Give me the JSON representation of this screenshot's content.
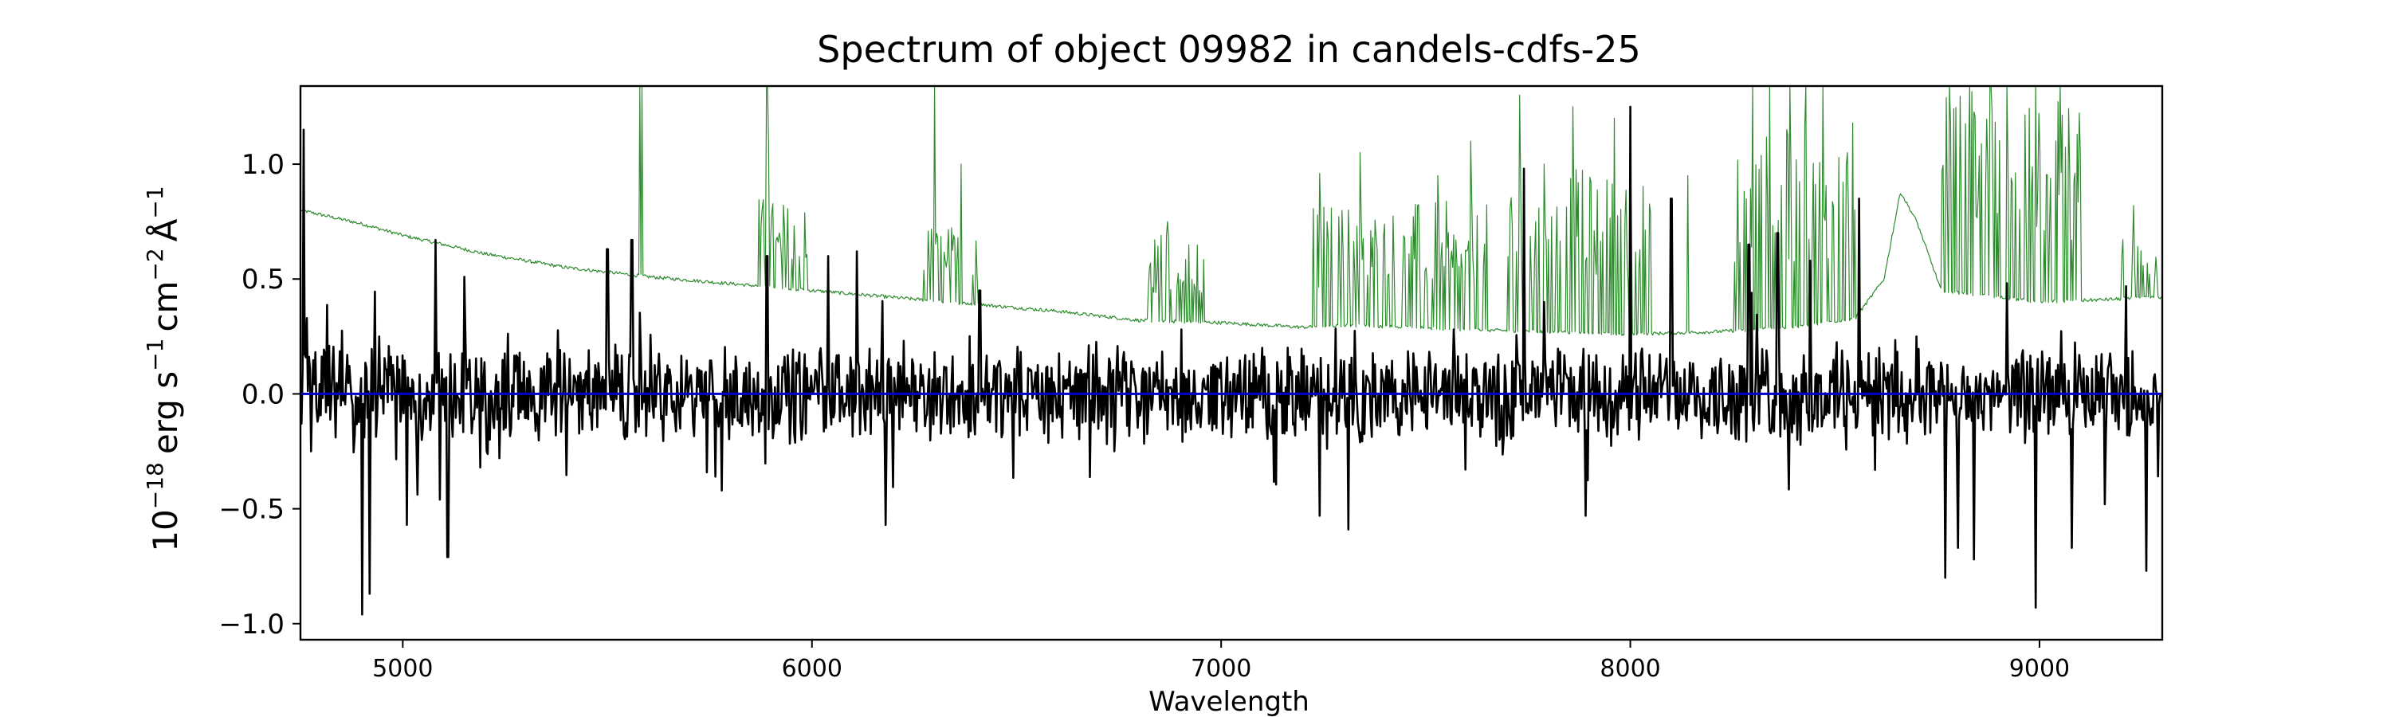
{
  "chart_data": {
    "type": "line",
    "title": "Spectrum of object 09982 in candels-cdfs-25",
    "xlabel": "Wavelength",
    "ylabel": {
      "base": "10",
      "base_exp": "−18",
      "unit_erg": "erg s",
      "s_exp": "−1",
      "unit_cm": "cm",
      "cm_exp": "−2",
      "unit_ang": "Å",
      "ang_exp": "−1"
    },
    "xlim": [
      4750,
      9300
    ],
    "ylim": [
      -1.07,
      1.34
    ],
    "x_ticks": [
      {
        "value": 5000,
        "label": "5000"
      },
      {
        "value": 6000,
        "label": "6000"
      },
      {
        "value": 7000,
        "label": "7000"
      },
      {
        "value": 8000,
        "label": "8000"
      },
      {
        "value": 9000,
        "label": "9000"
      }
    ],
    "y_ticks": [
      {
        "value": 1.0,
        "label": "1.0"
      },
      {
        "value": 0.5,
        "label": "0.5"
      },
      {
        "value": 0.0,
        "label": "0.0"
      },
      {
        "value": -0.5,
        "label": "−0.5"
      },
      {
        "value": -1.0,
        "label": "−1.0"
      }
    ],
    "grid": false,
    "legend": "none",
    "series": [
      {
        "id": "error",
        "color": "#2e8b2e",
        "linewidth": 1.2,
        "anchors": [
          [
            4750,
            0.8
          ],
          [
            4800,
            0.78
          ],
          [
            4900,
            0.74
          ],
          [
            5000,
            0.69
          ],
          [
            5100,
            0.65
          ],
          [
            5200,
            0.61
          ],
          [
            5400,
            0.55
          ],
          [
            5600,
            0.51
          ],
          [
            5800,
            0.48
          ],
          [
            6000,
            0.45
          ],
          [
            6200,
            0.42
          ],
          [
            6400,
            0.39
          ],
          [
            6600,
            0.36
          ],
          [
            6800,
            0.32
          ],
          [
            7000,
            0.31
          ],
          [
            7200,
            0.29
          ],
          [
            7300,
            0.3
          ],
          [
            7600,
            0.28
          ],
          [
            7800,
            0.27
          ],
          [
            8000,
            0.26
          ],
          [
            8200,
            0.27
          ],
          [
            8400,
            0.29
          ],
          [
            8550,
            0.33
          ],
          [
            8620,
            0.5
          ],
          [
            8660,
            0.88
          ],
          [
            8700,
            0.75
          ],
          [
            8760,
            0.45
          ],
          [
            9000,
            0.4
          ],
          [
            9300,
            0.42
          ]
        ],
        "spikes": [
          [
            5580,
            1.34
          ],
          [
            5585,
            1.34
          ],
          [
            5890,
            1.34
          ],
          [
            5895,
            1.1
          ],
          [
            6300,
            1.34
          ],
          [
            6365,
            1.0
          ],
          [
            6870,
            0.75
          ],
          [
            7240,
            0.96
          ],
          [
            7310,
            0.8
          ],
          [
            7340,
            1.05
          ],
          [
            7530,
            0.95
          ],
          [
            7610,
            1.1
          ],
          [
            7730,
            1.3
          ],
          [
            7790,
            1.0
          ],
          [
            7860,
            1.25
          ],
          [
            7960,
            1.2
          ],
          [
            8000,
            1.1
          ],
          [
            8140,
            0.95
          ],
          [
            8300,
            1.34
          ],
          [
            8340,
            1.34
          ],
          [
            8390,
            1.34
          ],
          [
            8430,
            1.34
          ],
          [
            8470,
            1.34
          ],
          [
            8530,
            1.05
          ],
          [
            8780,
            1.34
          ],
          [
            8830,
            1.34
          ],
          [
            8880,
            1.34
          ],
          [
            8920,
            1.34
          ],
          [
            8990,
            1.34
          ],
          [
            9050,
            1.34
          ],
          [
            9230,
            0.82
          ]
        ],
        "noisy_ranges": [
          [
            5870,
            5990,
            0.25
          ],
          [
            6270,
            6420,
            0.22
          ],
          [
            6820,
            6960,
            0.25
          ],
          [
            7220,
            7650,
            0.35
          ],
          [
            7700,
            8050,
            0.45
          ],
          [
            8250,
            8560,
            0.55
          ],
          [
            8760,
            9100,
            0.55
          ],
          [
            9200,
            9300,
            0.18
          ]
        ]
      },
      {
        "id": "flux",
        "color": "#000000",
        "linewidth": 2.6,
        "noise_amplitude": 0.17,
        "features": [
          [
            4758,
            1.15
          ],
          [
            4765,
            0.33
          ],
          [
            4775,
            -0.25
          ],
          [
            4900,
            -0.96
          ],
          [
            4920,
            -0.87
          ],
          [
            5010,
            -0.57
          ],
          [
            5080,
            0.67
          ],
          [
            5090,
            -0.46
          ],
          [
            5110,
            -0.71
          ],
          [
            5150,
            0.51
          ],
          [
            5190,
            -0.32
          ],
          [
            5500,
            0.63
          ],
          [
            5560,
            0.67
          ],
          [
            5780,
            -0.42
          ],
          [
            5890,
            0.6
          ],
          [
            6040,
            0.6
          ],
          [
            6110,
            0.62
          ],
          [
            6180,
            -0.57
          ],
          [
            6410,
            0.45
          ],
          [
            6740,
            -0.25
          ],
          [
            7240,
            -0.53
          ],
          [
            7310,
            -0.59
          ],
          [
            7740,
            0.98
          ],
          [
            7790,
            0.4
          ],
          [
            7890,
            -0.53
          ],
          [
            8000,
            1.25
          ],
          [
            8100,
            0.85
          ],
          [
            8290,
            0.65
          ],
          [
            8360,
            0.7
          ],
          [
            8440,
            0.58
          ],
          [
            8560,
            0.85
          ],
          [
            8700,
            0.25
          ],
          [
            8770,
            -0.8
          ],
          [
            8800,
            -0.67
          ],
          [
            8840,
            -0.72
          ],
          [
            8990,
            -0.93
          ],
          [
            9080,
            -0.67
          ],
          [
            9160,
            -0.48
          ],
          [
            9260,
            -0.77
          ],
          [
            9300,
            0.15
          ]
        ]
      },
      {
        "id": "zero",
        "color": "#0000cc",
        "linewidth": 3,
        "constant": 0.0
      }
    ]
  }
}
